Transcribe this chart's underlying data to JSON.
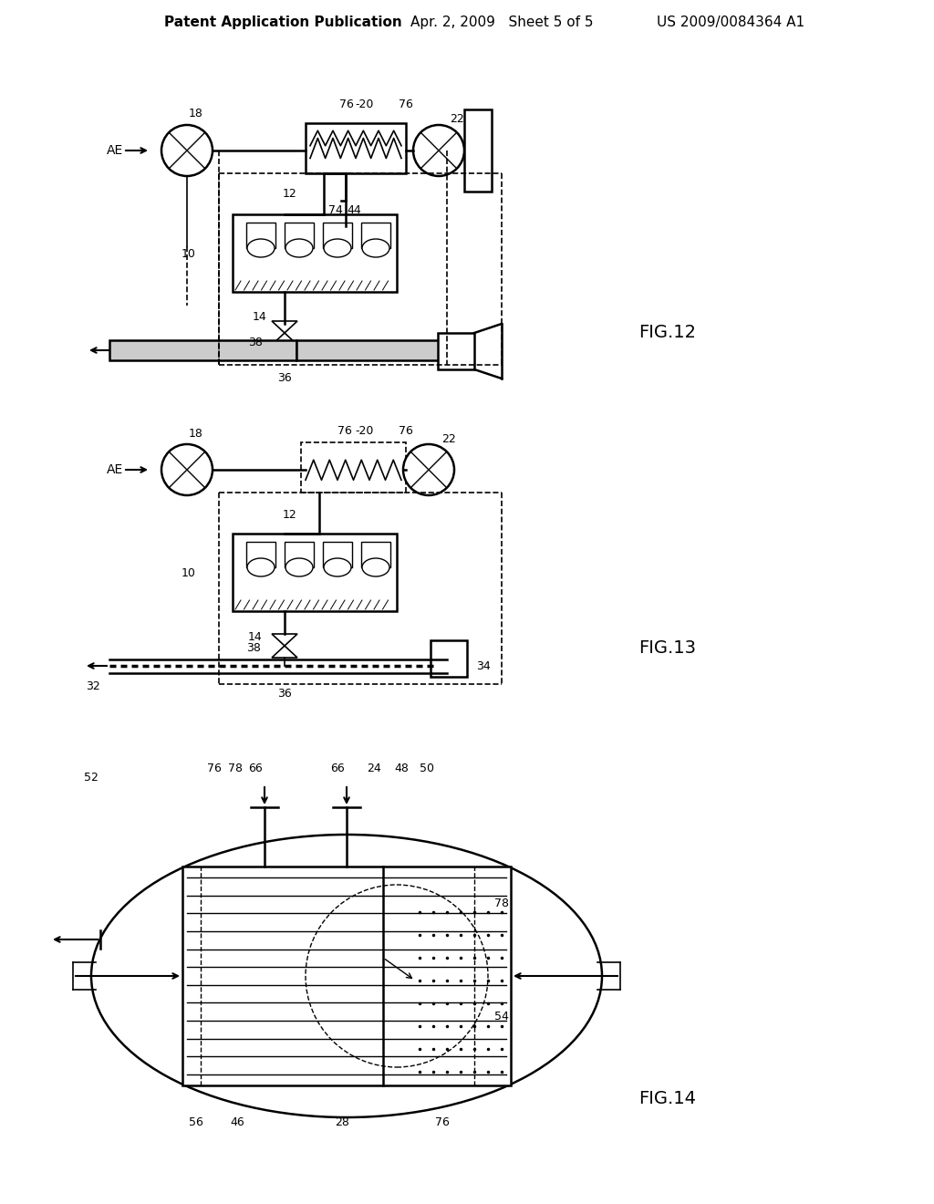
{
  "bg_color": "#ffffff",
  "line_color": "#000000",
  "header_text": "Patent Application Publication",
  "header_date": "Apr. 2, 2009   Sheet 5 of 5",
  "header_patent": "US 2009/0084364 A1",
  "fig12_label": "FIG.12",
  "fig13_label": "FIG.13",
  "fig14_label": "FIG.14",
  "font_size_header": 11,
  "font_size_label": 13,
  "font_size_ref": 9
}
